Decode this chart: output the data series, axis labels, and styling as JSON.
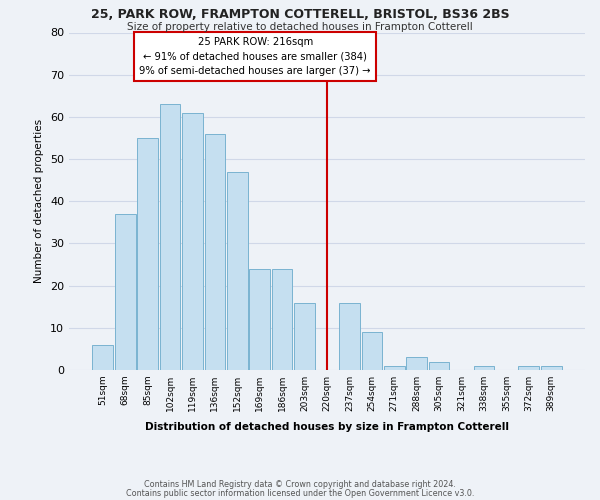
{
  "title": "25, PARK ROW, FRAMPTON COTTERELL, BRISTOL, BS36 2BS",
  "subtitle": "Size of property relative to detached houses in Frampton Cotterell",
  "xlabel": "Distribution of detached houses by size in Frampton Cotterell",
  "ylabel": "Number of detached properties",
  "bin_labels": [
    "51sqm",
    "68sqm",
    "85sqm",
    "102sqm",
    "119sqm",
    "136sqm",
    "152sqm",
    "169sqm",
    "186sqm",
    "203sqm",
    "220sqm",
    "237sqm",
    "254sqm",
    "271sqm",
    "288sqm",
    "305sqm",
    "321sqm",
    "338sqm",
    "355sqm",
    "372sqm",
    "389sqm"
  ],
  "bar_values": [
    6,
    37,
    55,
    63,
    61,
    56,
    47,
    24,
    24,
    16,
    0,
    16,
    9,
    1,
    3,
    2,
    0,
    1,
    0,
    1,
    1
  ],
  "bar_color": "#c5dff0",
  "bar_edge_color": "#7ab3d0",
  "vline_x_index": 10,
  "vline_color": "#cc0000",
  "annotation_line1": "25 PARK ROW: 216sqm",
  "annotation_line2": "← 91% of detached houses are smaller (384)",
  "annotation_line3": "9% of semi-detached houses are larger (37) →",
  "annotation_box_color": "#ffffff",
  "annotation_box_edge_color": "#cc0000",
  "ylim": [
    0,
    80
  ],
  "yticks": [
    0,
    10,
    20,
    30,
    40,
    50,
    60,
    70,
    80
  ],
  "footer_line1": "Contains HM Land Registry data © Crown copyright and database right 2024.",
  "footer_line2": "Contains public sector information licensed under the Open Government Licence v3.0.",
  "bg_color": "#eef2f7",
  "grid_color": "#d0d8e8"
}
